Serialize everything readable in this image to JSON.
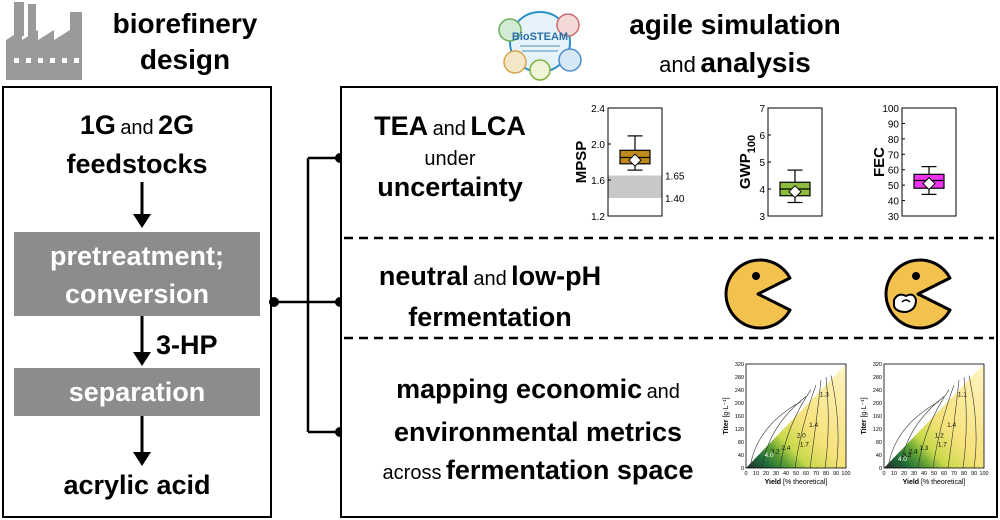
{
  "header": {
    "left_title_1": "biorefinery",
    "left_title_2": "design",
    "right_title_1": "agile simulation",
    "right_title_and": "and",
    "right_title_2": "analysis",
    "logo_text": "BioSTEAM"
  },
  "left_panel": {
    "feed_1g": "1G",
    "feed_and": "and",
    "feed_2g": "2G",
    "feed_word": "feedstocks",
    "step_1a": "pretreatment;",
    "step_1b": "conversion",
    "intermediate": "3-HP",
    "step_2": "separation",
    "product": "acrylic acid"
  },
  "right_panel": {
    "row1": {
      "tea": "TEA",
      "and": "and",
      "lca": "LCA",
      "under": "under",
      "uncertainty": "uncertainty"
    },
    "row2": {
      "neutral": "neutral",
      "and": "and",
      "lowph": "low-pH",
      "fermentation": "fermentation"
    },
    "row3": {
      "line1_bold": "mapping economic",
      "line1_and": "and",
      "line2": "environmental metrics",
      "line3_small": "across",
      "line3_bold": "fermentation space"
    }
  },
  "chart_data": [
    {
      "type": "box",
      "ylabel": "MPSP",
      "yticks": [
        "1.2",
        "1.6",
        "2.0",
        "2.4"
      ],
      "ylim": [
        1.2,
        2.4
      ],
      "band": {
        "low": 1.4,
        "high": 1.65,
        "low_label": "1.40",
        "high_label": "1.65",
        "color": "#c8c8c8"
      },
      "box": {
        "whisker_low": 1.71,
        "q1": 1.78,
        "median": 1.85,
        "q3": 1.93,
        "whisker_high": 2.09,
        "mean": 1.82
      },
      "color": "#c08a1f"
    },
    {
      "type": "box",
      "ylabel": "GWP",
      "ylabel_sub": "100",
      "yticks": [
        "3",
        "4",
        "5",
        "6",
        "7"
      ],
      "ylim": [
        3,
        7
      ],
      "box": {
        "whisker_low": 3.5,
        "q1": 3.75,
        "median": 4.0,
        "q3": 4.25,
        "whisker_high": 4.7,
        "mean": 3.9
      },
      "color": "#8dbb3c"
    },
    {
      "type": "box",
      "ylabel": "FEC",
      "yticks": [
        "30",
        "40",
        "50",
        "60",
        "70",
        "80",
        "90",
        "100"
      ],
      "ylim": [
        30,
        100
      ],
      "box": {
        "whisker_low": 44,
        "q1": 48,
        "median": 53,
        "q3": 57,
        "whisker_high": 62,
        "mean": 51
      },
      "color": "#ee33ee"
    },
    {
      "type": "heatmap",
      "xlabel": "Yield",
      "xlabel_unit": "[% theoretical]",
      "ylabel": "Titer",
      "ylabel_unit": "[g·L⁻¹]",
      "xticks": [
        "0",
        "10",
        "20",
        "30",
        "40",
        "50",
        "60",
        "70",
        "80",
        "90",
        "100"
      ],
      "yticks": [
        "0",
        "40",
        "80",
        "120",
        "160",
        "200",
        "240",
        "280",
        "320"
      ],
      "contours": [
        "1.3",
        "1.4",
        "2.0",
        "1.7",
        "2.4",
        "3.2",
        "4.0"
      ]
    },
    {
      "type": "heatmap",
      "xlabel": "Yield",
      "xlabel_unit": "[% theoretical]",
      "ylabel": "Titer",
      "ylabel_unit": "[g·L⁻¹]",
      "xticks": [
        "0",
        "10",
        "20",
        "30",
        "40",
        "50",
        "60",
        "70",
        "80",
        "90",
        "100"
      ],
      "yticks": [
        "0",
        "40",
        "80",
        "120",
        "160",
        "200",
        "240",
        "280",
        "320"
      ],
      "contours": [
        "1.1",
        "1.4",
        "1.2",
        "1.7",
        "1.3",
        "2.4",
        "3.2",
        "4.0"
      ]
    }
  ],
  "colors": {
    "gray_box": "#8c8c8c",
    "factory": "#9a9a9a",
    "pacman": "#f2c14e"
  }
}
